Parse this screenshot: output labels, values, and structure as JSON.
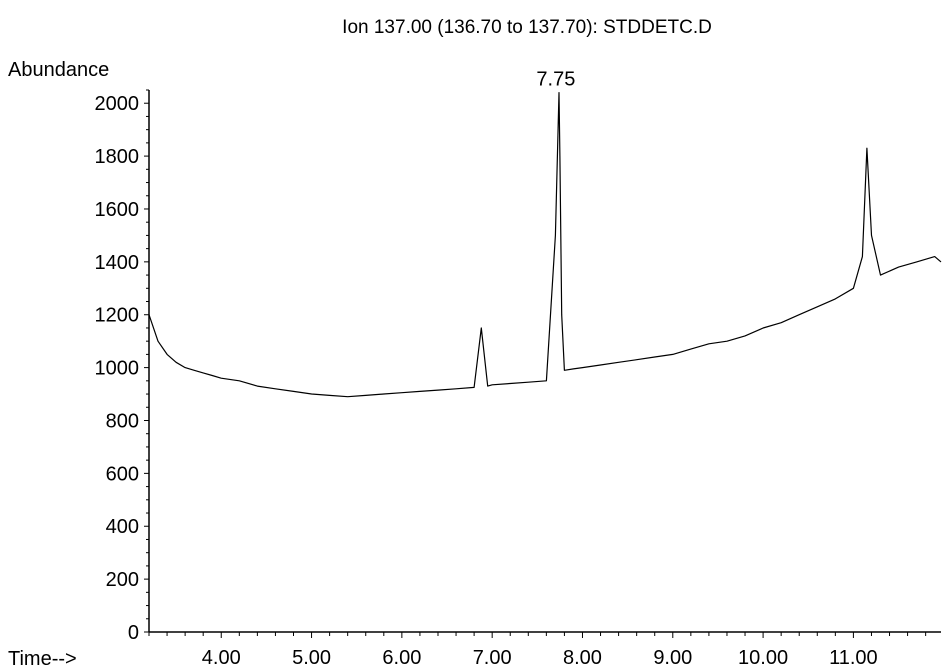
{
  "chart_data": {
    "type": "line",
    "title": "Ion 137.00 (136.70 to 137.70): STDDETC.D",
    "ylabel": "Abundance",
    "xlabel": "Time-->",
    "xlim": [
      3.2,
      11.97
    ],
    "ylim": [
      0,
      2050
    ],
    "x_ticks": [
      "4.00",
      "5.00",
      "6.00",
      "7.00",
      "8.00",
      "9.00",
      "10.00",
      "11.00"
    ],
    "y_ticks": [
      "0",
      "200",
      "400",
      "600",
      "800",
      "1000",
      "1200",
      "1400",
      "1600",
      "1800",
      "2000"
    ],
    "peak_annotation": {
      "label": "7.75",
      "x": 7.75,
      "y": 2045
    },
    "series": [
      {
        "x": [
          3.2,
          3.3,
          3.4,
          3.5,
          3.6,
          3.7,
          3.8,
          3.9,
          4.0,
          4.2,
          4.4,
          4.6,
          4.8,
          5.0,
          5.2,
          5.4,
          5.6,
          5.8,
          6.0,
          6.2,
          6.4,
          6.6,
          6.8,
          6.88,
          6.95,
          7.0,
          7.2,
          7.4,
          7.6,
          7.7,
          7.74,
          7.75,
          7.77,
          7.8,
          7.9,
          8.0,
          8.2,
          8.4,
          8.6,
          8.8,
          9.0,
          9.2,
          9.4,
          9.6,
          9.8,
          10.0,
          10.2,
          10.4,
          10.6,
          10.8,
          11.0,
          11.1,
          11.15,
          11.2,
          11.3,
          11.5,
          11.7,
          11.9,
          11.97
        ],
        "y": [
          1200,
          1100,
          1050,
          1020,
          1000,
          990,
          980,
          970,
          960,
          950,
          930,
          920,
          910,
          900,
          895,
          890,
          895,
          900,
          905,
          910,
          915,
          920,
          925,
          1150,
          930,
          935,
          940,
          945,
          950,
          1500,
          2040,
          1800,
          1200,
          990,
          995,
          1000,
          1010,
          1020,
          1030,
          1040,
          1050,
          1070,
          1090,
          1100,
          1120,
          1150,
          1170,
          1200,
          1230,
          1260,
          1300,
          1420,
          1830,
          1500,
          1350,
          1380,
          1400,
          1420,
          1400
        ]
      }
    ]
  }
}
